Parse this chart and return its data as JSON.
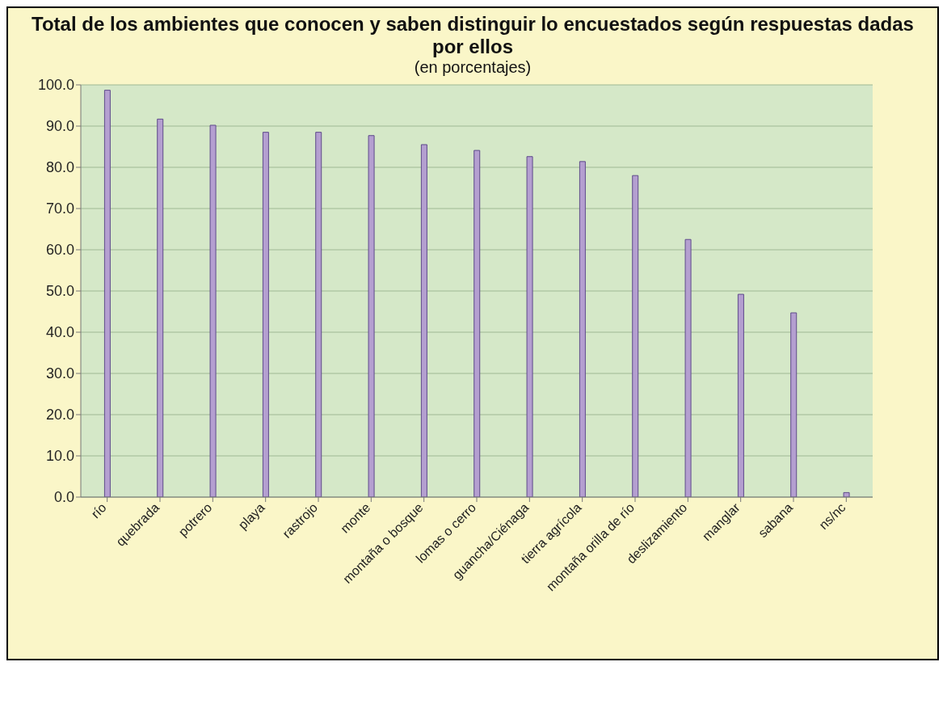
{
  "chart_data": {
    "type": "bar",
    "title": "Total de los ambientes que conocen y saben distinguir lo encuestados según respuestas dadas por ellos",
    "subtitle": "(en porcentajes)",
    "categories": [
      "río",
      "quebrada",
      "potrero",
      "playa",
      "rastrojo",
      "monte",
      "montaña o bosque",
      "lomas o cerro",
      "guancha/Ciénaga",
      "tierra agrícola",
      "montaña orilla de río",
      "deslizamiento",
      "manglar",
      "sabana",
      "ns/nc"
    ],
    "values": [
      98.7,
      91.7,
      90.2,
      88.5,
      88.5,
      87.7,
      85.5,
      84.1,
      82.6,
      81.4,
      78.0,
      62.5,
      49.2,
      44.7,
      1.1
    ],
    "color": "#b49fd0",
    "ylim": [
      0,
      100
    ],
    "yticks": [
      {
        "value": 0,
        "label": "0.0"
      },
      {
        "value": 10,
        "label": "10.0"
      },
      {
        "value": 20,
        "label": "20.0"
      },
      {
        "value": 30,
        "label": "30.0"
      },
      {
        "value": 40,
        "label": "40.0"
      },
      {
        "value": 50,
        "label": "50.0"
      },
      {
        "value": 60,
        "label": "60.0"
      },
      {
        "value": 70,
        "label": "70.0"
      },
      {
        "value": 80,
        "label": "80.0"
      },
      {
        "value": 90,
        "label": "90.0"
      },
      {
        "value": 100,
        "label": "100.0"
      }
    ],
    "grid": "y"
  }
}
